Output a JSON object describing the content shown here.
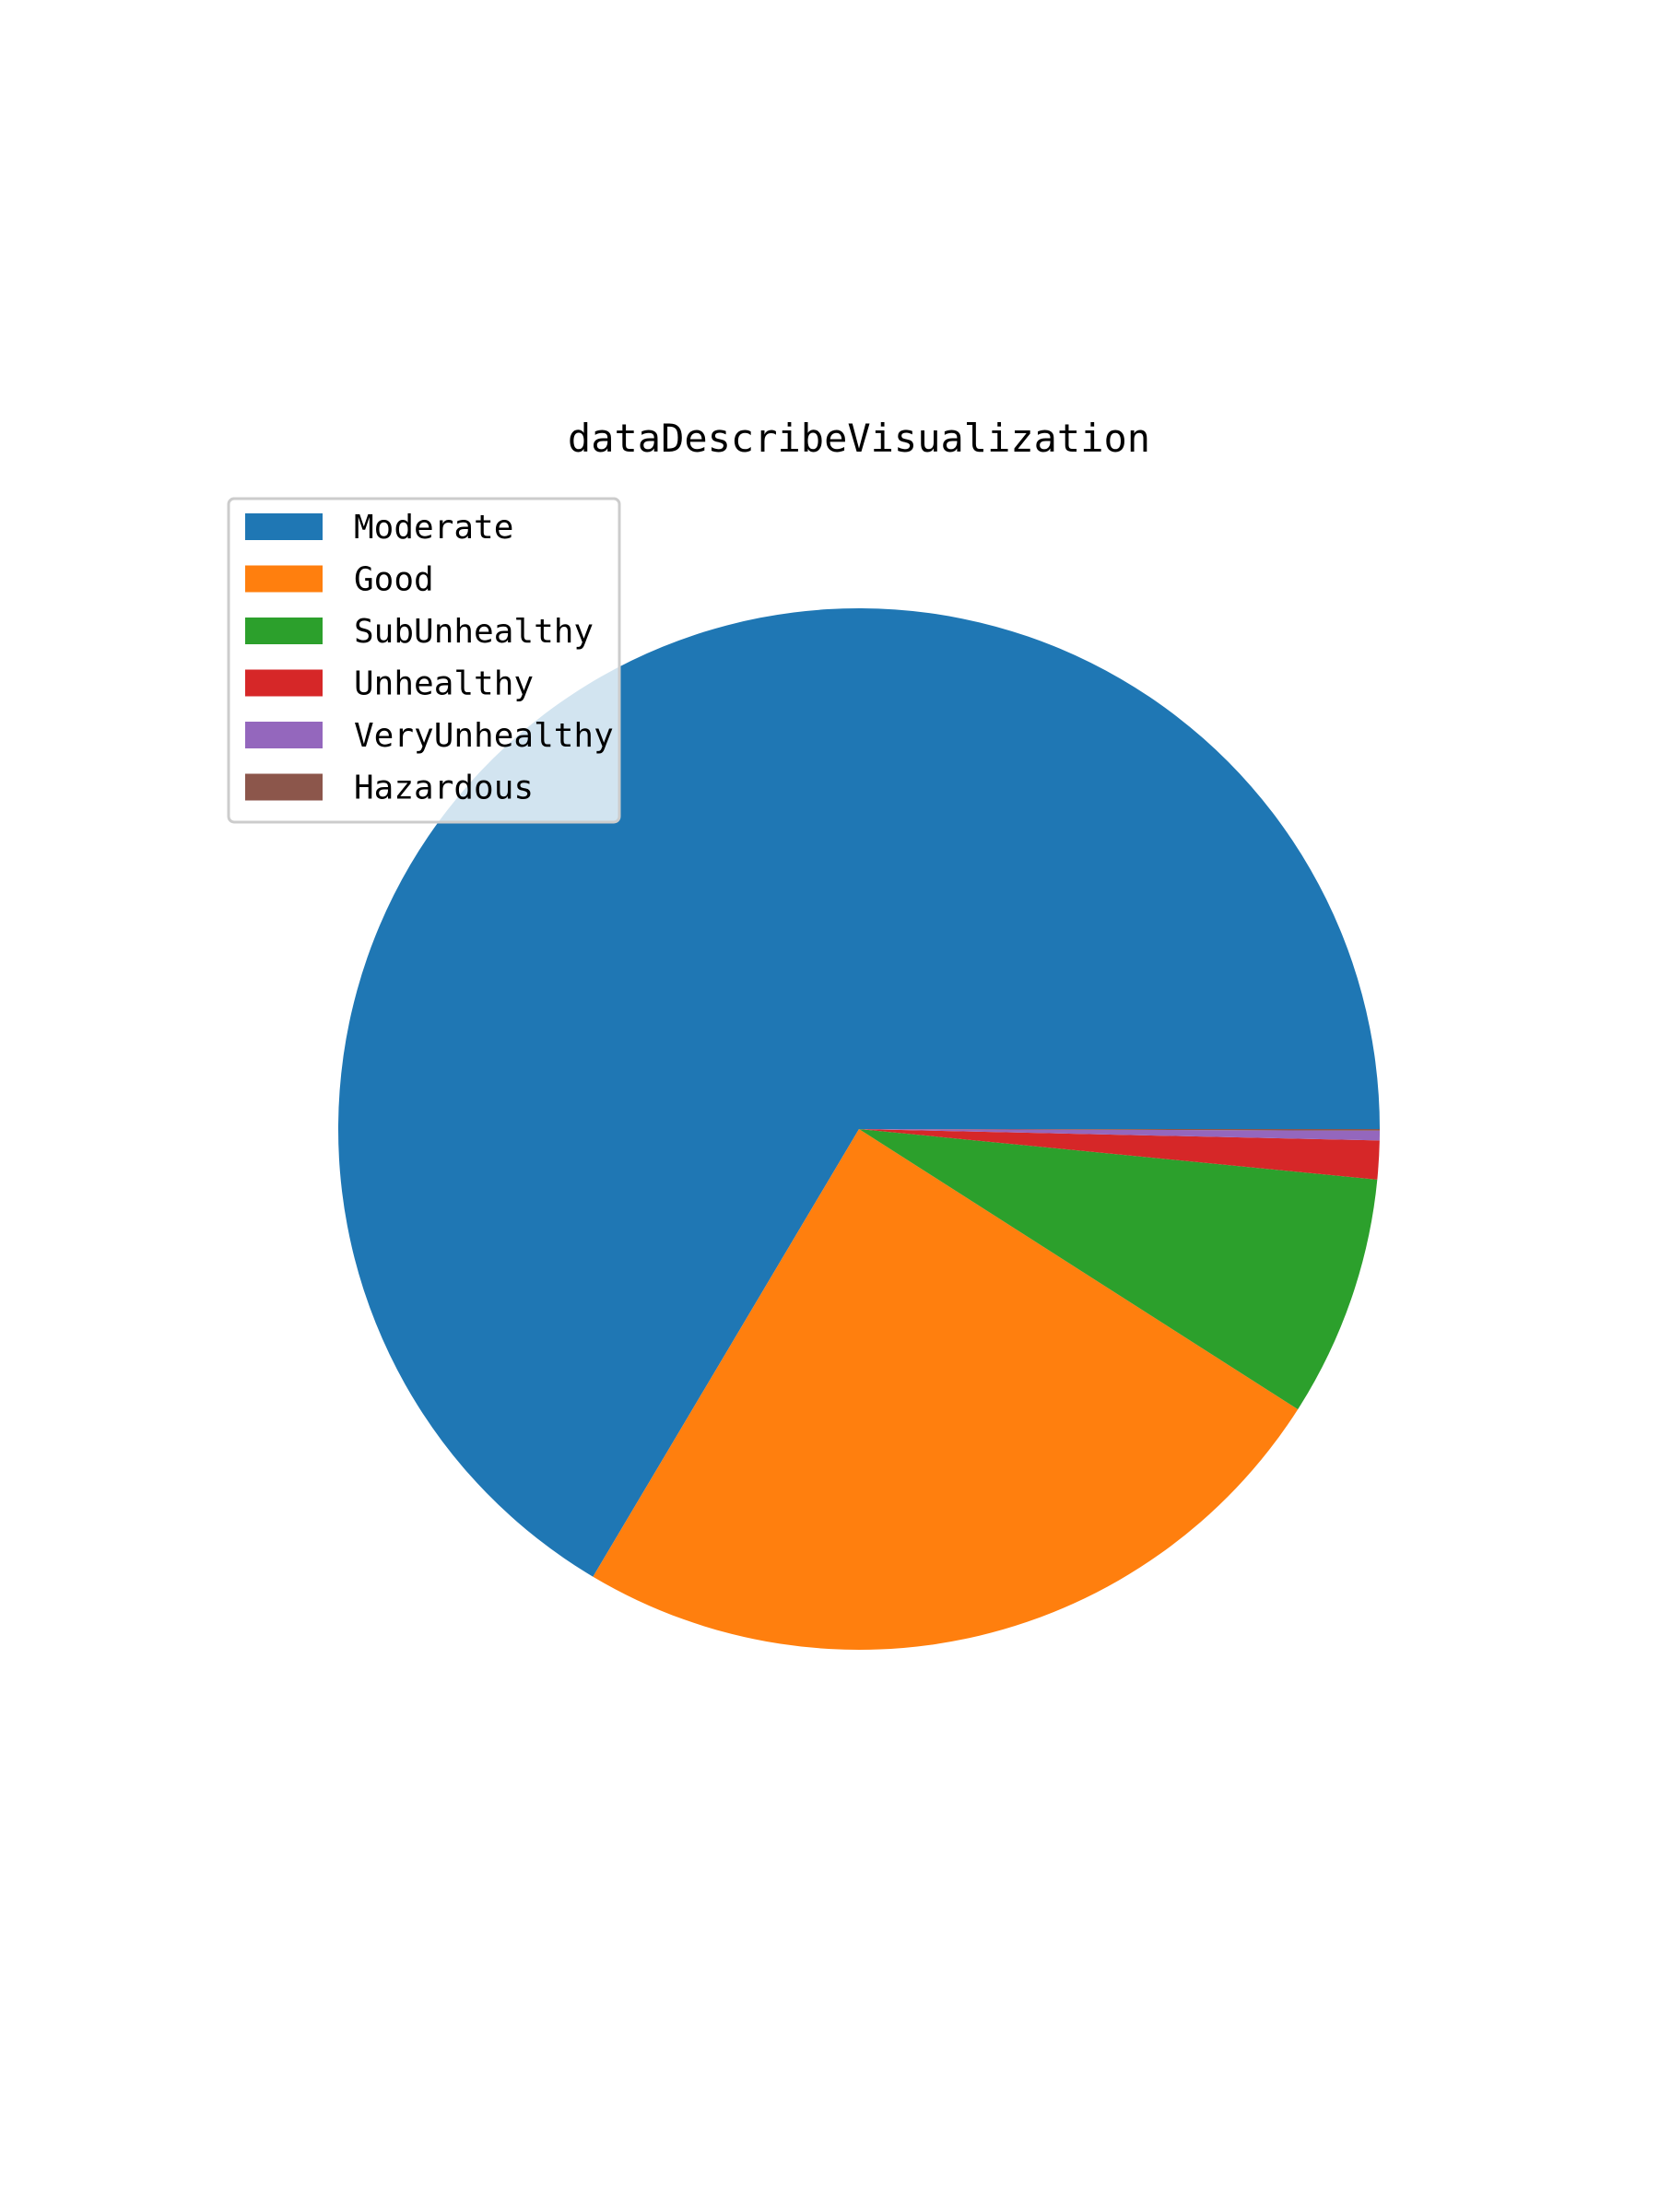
{
  "chart_data": {
    "type": "pie",
    "title": "dataDescribeVisualization",
    "categories": [
      "Moderate",
      "Good",
      "SubUnhealthy",
      "Unhealthy",
      "VeryUnhealthy",
      "Hazardous"
    ],
    "values": [
      66.5,
      24.5,
      7.5,
      1.2,
      0.3,
      0.05
    ],
    "unit": "",
    "colors": [
      "#1f77b4",
      "#ff7f0e",
      "#2ca02c",
      "#d62728",
      "#9467bd",
      "#8c564b"
    ],
    "start_angle_deg": 0,
    "direction": "counterclockwise",
    "legend_position": "upper-left",
    "grid": false
  }
}
